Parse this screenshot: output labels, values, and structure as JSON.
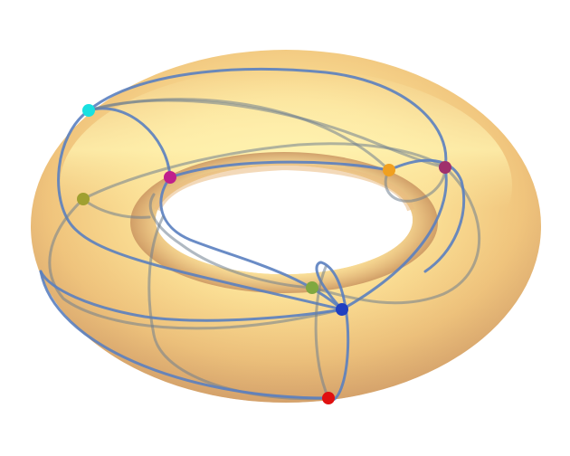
{
  "figure": {
    "surface": "torus",
    "surface_colors": {
      "light": "#fff0a8",
      "mid": "#f6cf7e",
      "dark": "#d9a869",
      "shadow": "#b88a5c"
    },
    "curve_color": "#5a80c0",
    "curve_color_back": "#6f7f8f",
    "vertex_colors": [
      {
        "name": "cyan-vertex",
        "color": "#18e0e0"
      },
      {
        "name": "magenta-vertex",
        "color": "#c0208c"
      },
      {
        "name": "olive-vertex",
        "color": "#a0a030"
      },
      {
        "name": "orange-vertex",
        "color": "#f0a020"
      },
      {
        "name": "purple-vertex",
        "color": "#a0306c"
      },
      {
        "name": "green-vertex",
        "color": "#80a840"
      },
      {
        "name": "blue-vertex",
        "color": "#2040c0"
      },
      {
        "name": "red-vertex",
        "color": "#e01010"
      }
    ]
  }
}
